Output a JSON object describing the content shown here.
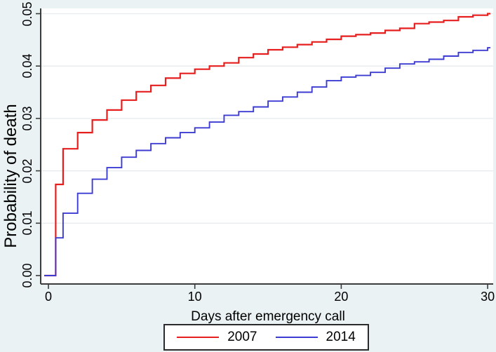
{
  "figure": {
    "background_color": "#eaf2f3",
    "plot_background_color": "#ffffff",
    "grid_color": "#e5ebee",
    "axis_color": "#3b3b3b",
    "text_color": "#000000"
  },
  "chart_data": {
    "type": "line",
    "subtype": "step-cumulative-incidence",
    "title": "",
    "xlabel": "Days after emergency call",
    "ylabel": "Probability of death",
    "xlim": [
      0,
      30
    ],
    "ylim": [
      0,
      0.05
    ],
    "xticks": [
      0,
      10,
      20,
      30
    ],
    "xtick_labels": [
      "0",
      "10",
      "20",
      "30"
    ],
    "yticks": [
      0,
      0.01,
      0.02,
      0.03,
      0.04,
      0.05
    ],
    "ytick_labels": [
      "0.00",
      "0.01",
      "0.02",
      "0.03",
      "0.04",
      "0.05"
    ],
    "grid": "horizontal",
    "legend_position": "bottom-center",
    "series": [
      {
        "name": "2007",
        "color": "#e61e1e",
        "points": [
          [
            0,
            0
          ],
          [
            0.5,
            0.0174
          ],
          [
            1,
            0.0242
          ],
          [
            2,
            0.0273
          ],
          [
            3,
            0.0297
          ],
          [
            4,
            0.0316
          ],
          [
            5,
            0.0335
          ],
          [
            6,
            0.0351
          ],
          [
            7,
            0.0363
          ],
          [
            8,
            0.0377
          ],
          [
            9,
            0.0386
          ],
          [
            10,
            0.0394
          ],
          [
            11,
            0.04
          ],
          [
            12,
            0.0406
          ],
          [
            13,
            0.0416
          ],
          [
            14,
            0.0423
          ],
          [
            15,
            0.0431
          ],
          [
            16,
            0.0436
          ],
          [
            17,
            0.0441
          ],
          [
            18,
            0.0446
          ],
          [
            19,
            0.0451
          ],
          [
            20,
            0.0457
          ],
          [
            21,
            0.046
          ],
          [
            22,
            0.0463
          ],
          [
            23,
            0.0468
          ],
          [
            24,
            0.0472
          ],
          [
            25,
            0.0481
          ],
          [
            26,
            0.0484
          ],
          [
            27,
            0.0487
          ],
          [
            28,
            0.0494
          ],
          [
            29,
            0.0497
          ],
          [
            30,
            0.05
          ]
        ]
      },
      {
        "name": "2014",
        "color": "#3c3cd2",
        "points": [
          [
            0,
            0
          ],
          [
            0.5,
            0.0072
          ],
          [
            1,
            0.0119
          ],
          [
            2,
            0.0157
          ],
          [
            3,
            0.0184
          ],
          [
            4,
            0.0206
          ],
          [
            5,
            0.0226
          ],
          [
            6,
            0.0239
          ],
          [
            7,
            0.0252
          ],
          [
            8,
            0.0263
          ],
          [
            9,
            0.0273
          ],
          [
            10,
            0.0282
          ],
          [
            11,
            0.0293
          ],
          [
            12,
            0.0306
          ],
          [
            13,
            0.0313
          ],
          [
            14,
            0.0322
          ],
          [
            15,
            0.0333
          ],
          [
            16,
            0.0341
          ],
          [
            17,
            0.035
          ],
          [
            18,
            0.036
          ],
          [
            19,
            0.0372
          ],
          [
            20,
            0.0379
          ],
          [
            21,
            0.0382
          ],
          [
            22,
            0.0388
          ],
          [
            23,
            0.0396
          ],
          [
            24,
            0.0404
          ],
          [
            25,
            0.0408
          ],
          [
            26,
            0.0413
          ],
          [
            27,
            0.0419
          ],
          [
            28,
            0.0426
          ],
          [
            29,
            0.043
          ],
          [
            30,
            0.0435
          ]
        ]
      }
    ]
  }
}
